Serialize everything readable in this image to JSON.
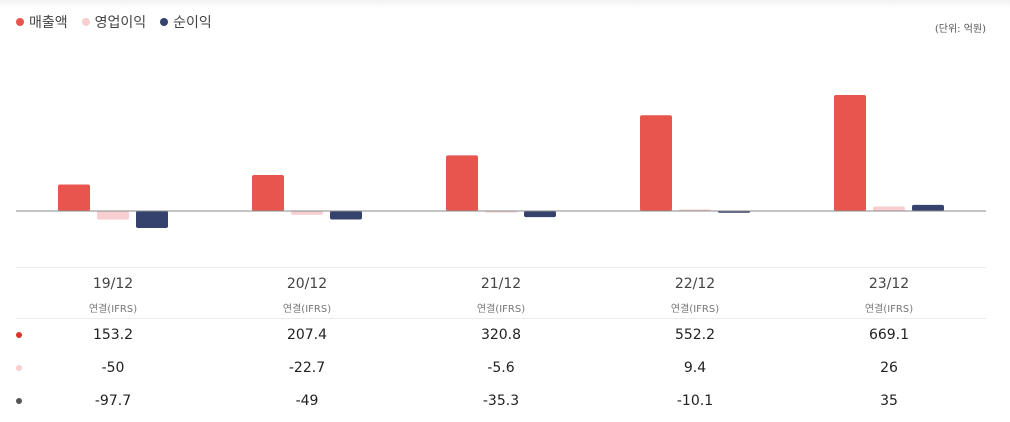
{
  "legend": {
    "items": [
      {
        "label": "매출액",
        "color": "#e8554e"
      },
      {
        "label": "영업이익",
        "color": "#f7cfd0"
      },
      {
        "label": "순이익",
        "color": "#35426e"
      }
    ]
  },
  "unit_label": "(단위: 억원)",
  "periods": [
    {
      "label": "19/12",
      "basis": "연결(IFRS)"
    },
    {
      "label": "20/12",
      "basis": "연결(IFRS)"
    },
    {
      "label": "21/12",
      "basis": "연결(IFRS)"
    },
    {
      "label": "22/12",
      "basis": "연결(IFRS)"
    },
    {
      "label": "23/12",
      "basis": "연결(IFRS)"
    }
  ],
  "table": {
    "rows": [
      {
        "marker_color": "#d9342b",
        "values": [
          "153.2",
          "207.4",
          "320.8",
          "552.2",
          "669.1"
        ]
      },
      {
        "marker_color": "#f7cfd0",
        "values": [
          "-50",
          "-22.7",
          "-5.6",
          "9.4",
          "26"
        ]
      },
      {
        "marker_color": "#555555",
        "values": [
          "-97.7",
          "-49",
          "-35.3",
          "-10.1",
          "35"
        ]
      }
    ]
  },
  "chart_data": {
    "type": "bar",
    "categories": [
      "19/12",
      "20/12",
      "21/12",
      "22/12",
      "23/12"
    ],
    "series": [
      {
        "name": "매출액",
        "color": "#e8554e",
        "values": [
          153.2,
          207.4,
          320.8,
          552.2,
          669.1
        ]
      },
      {
        "name": "영업이익",
        "color": "#f7cfd0",
        "values": [
          -50,
          -22.7,
          -5.6,
          9.4,
          26
        ]
      },
      {
        "name": "순이익",
        "color": "#35426e",
        "values": [
          -97.7,
          -49,
          -35.3,
          -10.1,
          35
        ]
      }
    ],
    "ylabel": "",
    "xlabel": "",
    "grid": false
  }
}
